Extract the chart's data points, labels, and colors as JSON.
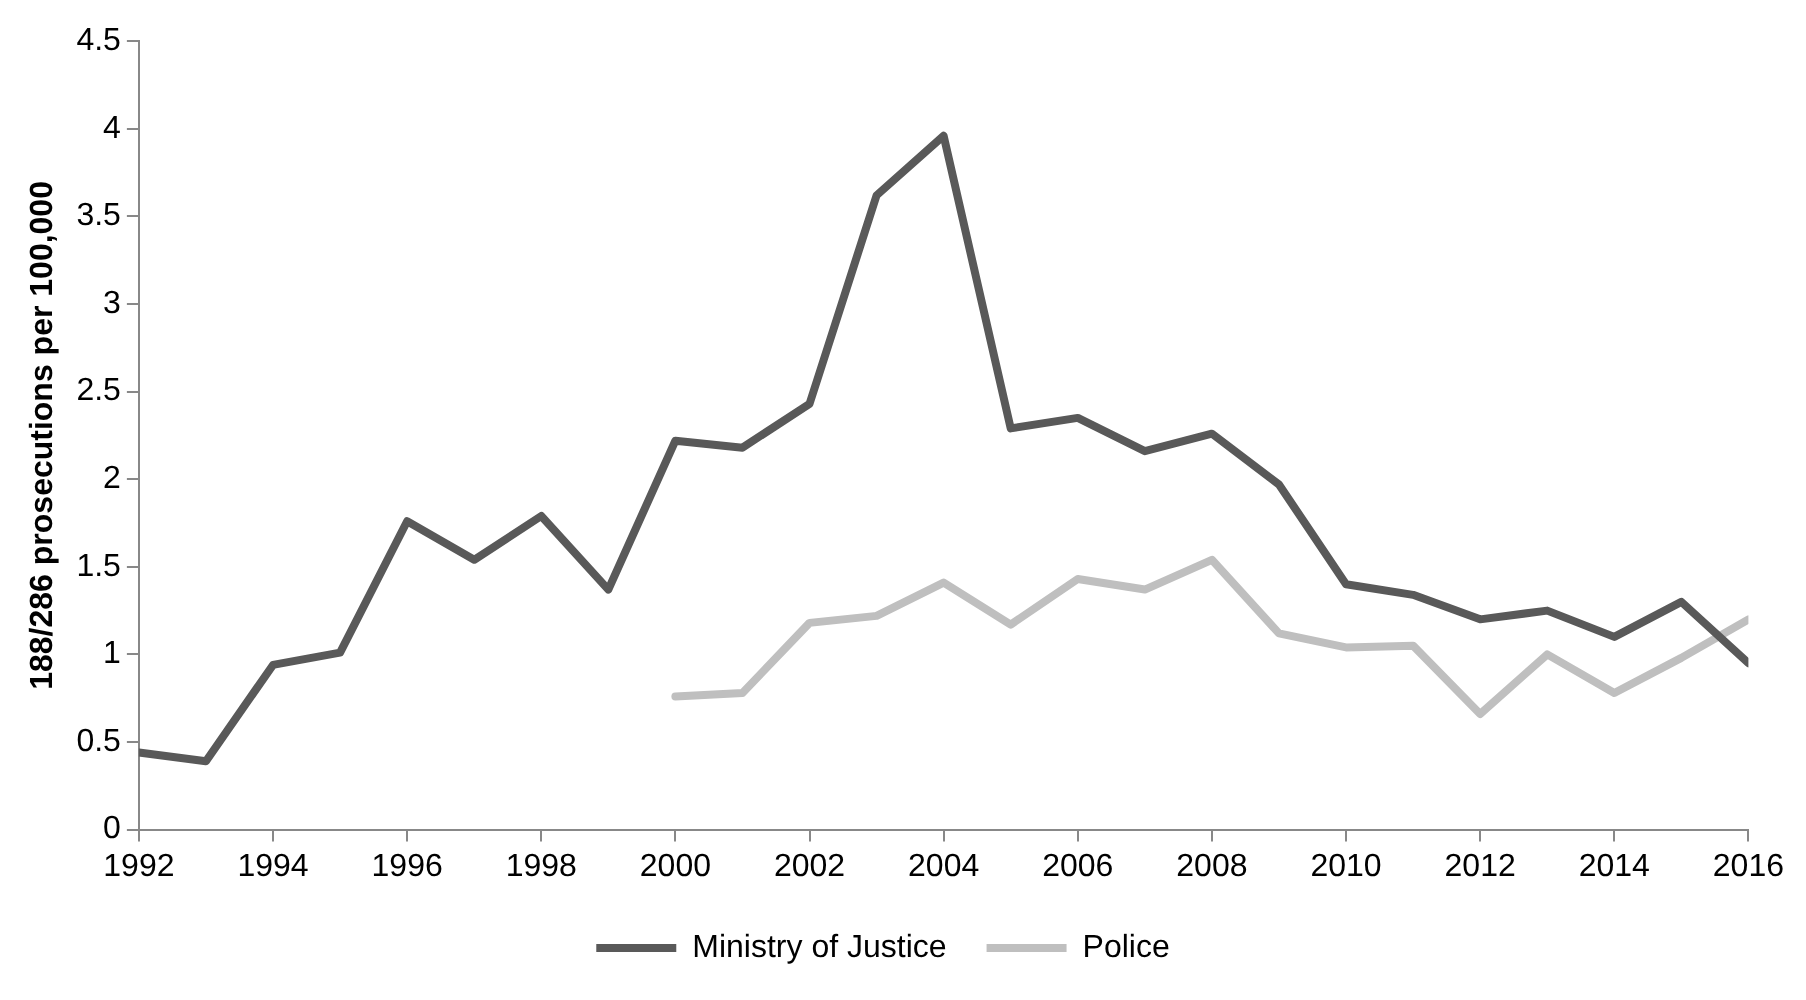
{
  "chart_data": {
    "type": "line",
    "ylabel": "188/286 prosecutions per 100,000",
    "x": [
      1992,
      1993,
      1994,
      1995,
      1996,
      1997,
      1998,
      1999,
      2000,
      2001,
      2002,
      2003,
      2004,
      2005,
      2006,
      2007,
      2008,
      2009,
      2010,
      2011,
      2012,
      2013,
      2014,
      2015,
      2016
    ],
    "series": [
      {
        "name": "Ministry of Justice",
        "color": "#595959",
        "values": [
          0.44,
          0.39,
          0.94,
          1.01,
          1.76,
          1.54,
          1.79,
          1.37,
          2.22,
          2.18,
          2.43,
          3.62,
          3.96,
          2.29,
          2.35,
          2.16,
          2.26,
          1.97,
          1.4,
          1.34,
          1.2,
          1.25,
          1.1,
          1.3,
          0.95
        ]
      },
      {
        "name": "Police",
        "color": "#bfbfbf",
        "values": [
          null,
          null,
          null,
          null,
          null,
          null,
          null,
          null,
          0.76,
          0.78,
          1.18,
          1.22,
          1.41,
          1.17,
          1.43,
          1.37,
          1.54,
          1.12,
          1.04,
          1.05,
          0.66,
          1.0,
          0.78,
          0.98,
          1.2
        ]
      }
    ],
    "xlim": [
      1992,
      2016
    ],
    "xticks": [
      1992,
      1994,
      1996,
      1998,
      2000,
      2002,
      2004,
      2006,
      2008,
      2010,
      2012,
      2014,
      2016
    ],
    "ylim": [
      0,
      4.5
    ],
    "yticks": [
      0,
      0.5,
      1,
      1.5,
      2,
      2.5,
      3,
      3.5,
      4,
      4.5
    ],
    "grid": false,
    "legend": "bottom",
    "marker": "none",
    "line_style": "solid"
  }
}
